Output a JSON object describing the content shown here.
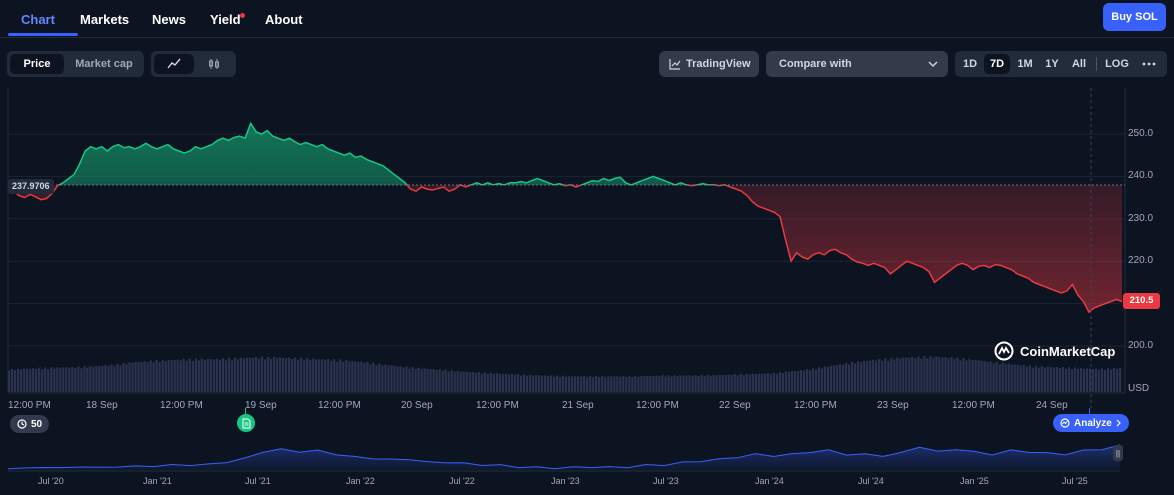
{
  "nav": {
    "tabs": [
      {
        "label": "Chart"
      },
      {
        "label": "Markets"
      },
      {
        "label": "News"
      },
      {
        "label": "Yield"
      },
      {
        "label": "About"
      }
    ],
    "buy_label": "Buy SOL"
  },
  "controls": {
    "metric": {
      "price": "Price",
      "market_cap": "Market cap"
    },
    "chart_type_icons": [
      "line-chart-icon",
      "candlestick-icon"
    ],
    "tradingview_label": "TradingView",
    "compare_placeholder": "Compare with",
    "ranges": [
      "1D",
      "7D",
      "1M",
      "1Y",
      "All",
      "LOG"
    ],
    "selected_range": "7D"
  },
  "colors": {
    "up": "#16c784",
    "down": "#ea3943",
    "accent": "#3861fb",
    "volume": "#2b3350"
  },
  "chart": {
    "open_price_label": "237.9706",
    "current_price_label": "210.5",
    "currency_label": "USD",
    "watermark": "CoinMarketCap",
    "events_count": "50",
    "analyze_label": "Analyze"
  },
  "chart_data": {
    "type": "area",
    "baseline": 237.9706,
    "ylim": [
      196,
      256
    ],
    "y_ticks": [
      "250.0",
      "240.0",
      "230.0",
      "220.0",
      "210.0",
      "200.0"
    ],
    "x_ticks": [
      "12:00 PM",
      "18 Sep",
      "12:00 PM",
      "19 Sep",
      "12:00 PM",
      "20 Sep",
      "12:00 PM",
      "21 Sep",
      "12:00 PM",
      "22 Sep",
      "12:00 PM",
      "23 Sep",
      "12:00 PM",
      "24 Sep"
    ],
    "series": [
      {
        "values": [
          237.5,
          236.5,
          235.5,
          235.0,
          235.8,
          235.2,
          234.5,
          234.8,
          236.0,
          237.8,
          238.5,
          239.5,
          240.5,
          243.0,
          246.0,
          247.0,
          246.5,
          247.0,
          246.0,
          247.0,
          247.5,
          246.8,
          247.0,
          246.5,
          247.0,
          247.8,
          247.0,
          246.5,
          247.0,
          247.5,
          246.5,
          246.0,
          245.5,
          246.0,
          247.0,
          246.5,
          247.0,
          247.5,
          248.5,
          249.0,
          248.5,
          249.2,
          249.5,
          249.0,
          252.5,
          250.5,
          250.0,
          250.8,
          249.5,
          249.0,
          248.5,
          249.0,
          248.2,
          247.5,
          248.0,
          247.5,
          247.0,
          247.5,
          246.5,
          246.0,
          245.5,
          245.0,
          245.5,
          244.5,
          244.8,
          244.0,
          243.5,
          243.0,
          242.5,
          241.5,
          240.5,
          239.5,
          238.5,
          237.0,
          236.5,
          237.5,
          237.0,
          236.8,
          237.2,
          237.5,
          236.5,
          237.0,
          238.0,
          237.5,
          238.0,
          238.5,
          238.0,
          238.5,
          238.0,
          238.3,
          238.0,
          238.5,
          238.5,
          238.8,
          238.5,
          239.0,
          239.5,
          239.0,
          238.5,
          238.0,
          238.3,
          237.8,
          238.0,
          237.5,
          238.0,
          238.5,
          239.0,
          238.8,
          239.5,
          239.0,
          239.5,
          239.8,
          238.5,
          238.0,
          238.5,
          239.0,
          239.5,
          240.0,
          239.5,
          239.0,
          238.5,
          238.0,
          238.5,
          238.0,
          237.8,
          238.0,
          238.3,
          238.0,
          238.0,
          237.8,
          238.0,
          237.5,
          237.0,
          236.5,
          235.5,
          234.0,
          233.0,
          232.5,
          232.0,
          231.5,
          230.5,
          225.0,
          220.0,
          222.0,
          221.0,
          220.5,
          221.5,
          222.0,
          221.5,
          222.5,
          222.8,
          222.0,
          221.5,
          220.5,
          219.8,
          219.5,
          219.0,
          219.5,
          219.0,
          218.5,
          217.0,
          218.0,
          219.0,
          220.0,
          219.5,
          219.0,
          218.5,
          217.5,
          215.0,
          216.0,
          217.0,
          218.0,
          219.0,
          219.5,
          219.0,
          218.0,
          218.8,
          219.0,
          218.5,
          219.2,
          219.0,
          218.5,
          218.0,
          217.0,
          216.5,
          216.0,
          215.0,
          214.5,
          214.0,
          213.5,
          213.0,
          212.5,
          213.0,
          214.5,
          212.0,
          210.5,
          208.0,
          209.0,
          209.5,
          210.0,
          210.5,
          211.0,
          210.5
        ]
      }
    ],
    "volume_profile": [
      0.55,
      0.57,
      0.59,
      0.6,
      0.62,
      0.66,
      0.72,
      0.76,
      0.78,
      0.8,
      0.8,
      0.82,
      0.84,
      0.84,
      0.82,
      0.8,
      0.78,
      0.74,
      0.68,
      0.62,
      0.58,
      0.54,
      0.5,
      0.47,
      0.44,
      0.42,
      0.4,
      0.39,
      0.38,
      0.38,
      0.38,
      0.39,
      0.4,
      0.4,
      0.41,
      0.42,
      0.44,
      0.45,
      0.5,
      0.56,
      0.64,
      0.72,
      0.78,
      0.82,
      0.85,
      0.86,
      0.83,
      0.78,
      0.72,
      0.66,
      0.62,
      0.6,
      0.58,
      0.56,
      0.58
    ],
    "navigator_profile": [
      0.05,
      0.08,
      0.1,
      0.09,
      0.12,
      0.1,
      0.12,
      0.15,
      0.14,
      0.2,
      0.18,
      0.22,
      0.3,
      0.45,
      0.7,
      0.8,
      0.7,
      0.75,
      0.6,
      0.5,
      0.45,
      0.4,
      0.42,
      0.3,
      0.3,
      0.25,
      0.2,
      0.18,
      0.12,
      0.1,
      0.08,
      0.1,
      0.12,
      0.1,
      0.12,
      0.18,
      0.2,
      0.28,
      0.35,
      0.4,
      0.5,
      0.6,
      0.55,
      0.6,
      0.7,
      0.75,
      0.6,
      0.6,
      0.55,
      0.65,
      0.9,
      0.7,
      0.8,
      0.7,
      0.6,
      0.75,
      0.7,
      0.65,
      0.6,
      0.75,
      0.8,
      0.95
    ],
    "navigator_ticks": [
      "Jul '20",
      "Jan '21",
      "Jul '21",
      "Jan '22",
      "Jul '22",
      "Jan '23",
      "Jul '23",
      "Jan '24",
      "Jul '24",
      "Jan '25",
      "Jul '25"
    ]
  }
}
